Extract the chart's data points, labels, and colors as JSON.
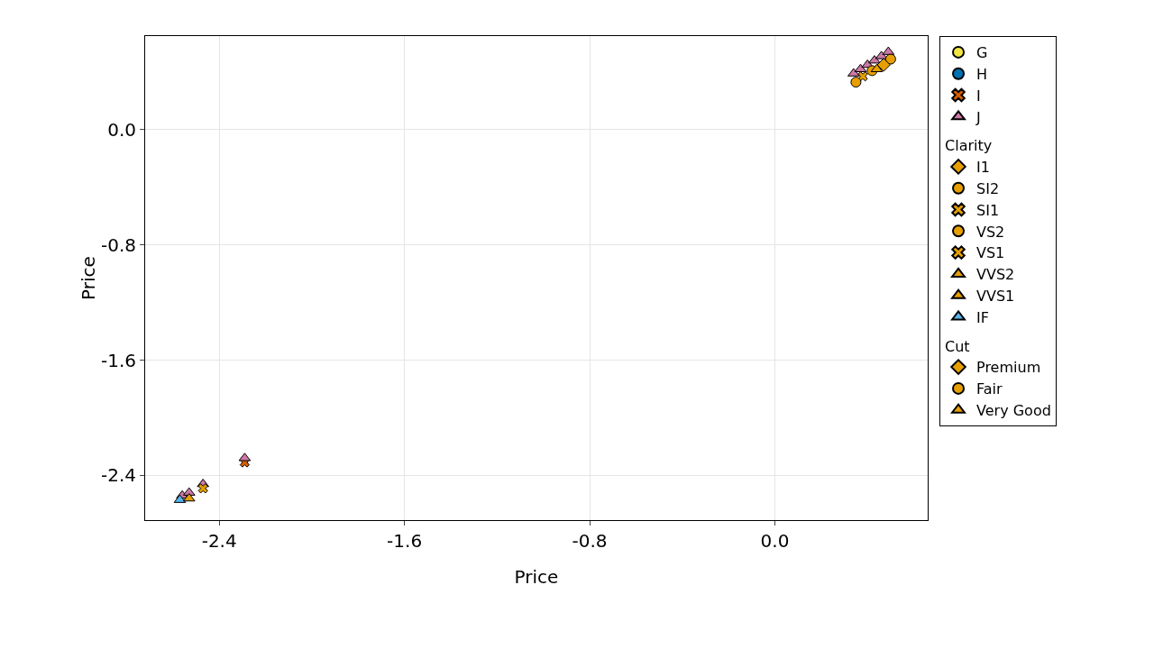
{
  "chart_data": {
    "type": "scatter",
    "xlabel": "Price",
    "ylabel": "Price",
    "xlim": [
      -2.72,
      0.66
    ],
    "xticks": [
      {
        "value": -2.4,
        "label": "-2.4"
      },
      {
        "value": -1.6,
        "label": "-1.6"
      },
      {
        "value": -0.8,
        "label": "-0.8"
      },
      {
        "value": 0,
        "label": "0.0"
      }
    ],
    "ylim": [
      -2.71,
      0.65
    ],
    "yticks": [
      {
        "value": 0,
        "label": "0.0"
      },
      {
        "value": -0.8,
        "label": "-0.8"
      },
      {
        "value": -1.6,
        "label": "-1.6"
      },
      {
        "value": -2.4,
        "label": "-2.4"
      }
    ],
    "grid": true,
    "legend": "right",
    "annotations": [
      "Clarity",
      "Cut"
    ],
    "series": [
      {
        "name": "G",
        "color": "#f0e442",
        "marker": "circle",
        "x": [
          null
        ],
        "values": [
          null
        ]
      },
      {
        "name": "H",
        "color": "#0072b2",
        "marker": "circle",
        "x": [
          null
        ],
        "values": [
          null
        ]
      },
      {
        "name": "I",
        "color": "#d55e00",
        "marker": "cross",
        "x": [
          null,
          -2.29
        ],
        "values": [
          null,
          -2.31
        ]
      },
      {
        "name": "J",
        "color": "#cc79a7",
        "marker": "triangle",
        "x": [
          0.34,
          0.37,
          0.4,
          0.43,
          0.46,
          0.49,
          -2.56,
          -2.53,
          -2.47,
          -2.29
        ],
        "values": [
          0.39,
          0.42,
          0.45,
          0.48,
          0.51,
          0.54,
          -2.54,
          -2.52,
          -2.46,
          -2.28
        ]
      },
      {
        "name": "I1",
        "color": "#e69f00",
        "marker": "diamond",
        "x": [
          null
        ],
        "values": [
          null
        ]
      },
      {
        "name": "SI2",
        "color": "#e69f00",
        "marker": "circle",
        "x": [
          0.42
        ],
        "values": [
          0.41
        ]
      },
      {
        "name": "SI1",
        "color": "#e69f00",
        "marker": "cross",
        "x": [
          -2.47
        ],
        "values": [
          -2.49
        ]
      },
      {
        "name": "VS2",
        "color": "#e69f00",
        "marker": "circle",
        "x": [
          0.5
        ],
        "values": [
          0.49
        ]
      },
      {
        "name": "VS1",
        "color": "#e69f00",
        "marker": "cross",
        "x": [
          0.38
        ],
        "values": [
          0.37
        ]
      },
      {
        "name": "VVS2",
        "color": "#e69f00",
        "marker": "triangle",
        "x": [
          null
        ],
        "values": [
          null
        ]
      },
      {
        "name": "VVS1",
        "color": "#e69f00",
        "marker": "triangle",
        "x": [
          0.44
        ],
        "values": [
          0.42
        ]
      },
      {
        "name": "IF",
        "color": "#56b4e9",
        "marker": "triangle",
        "x": [
          -2.57
        ],
        "values": [
          -2.57
        ]
      },
      {
        "name": "Premium",
        "color": "#e69f00",
        "marker": "diamond",
        "x": [
          0.47
        ],
        "values": [
          0.45
        ]
      },
      {
        "name": "Fair",
        "color": "#e69f00",
        "marker": "circle",
        "x": [
          0.35
        ],
        "values": [
          0.33
        ]
      },
      {
        "name": "Very Good",
        "color": "#e69f00",
        "marker": "triangle",
        "x": [
          -2.53
        ],
        "values": [
          -2.56
        ]
      }
    ]
  }
}
